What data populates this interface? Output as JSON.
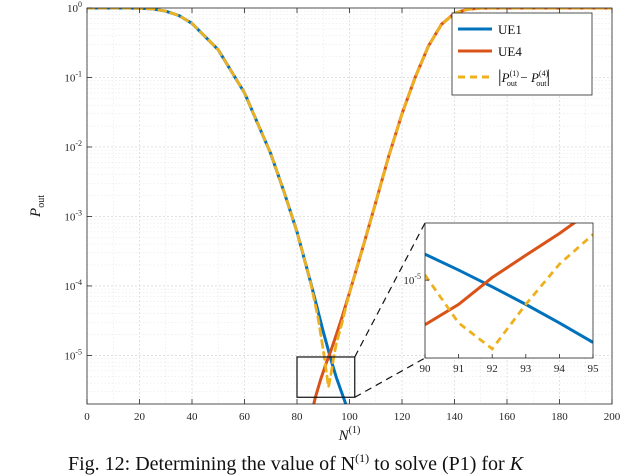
{
  "caption": "Fig. 12: Determining the value of N",
  "caption_tail": "to solve (P1) for",
  "caption_k": "K",
  "chart_data": [
    {
      "type": "line",
      "yscale": "log",
      "xlim": [
        0,
        200
      ],
      "ylim": [
        2e-06,
        1
      ],
      "xticks": [
        0,
        20,
        40,
        60,
        80,
        100,
        120,
        140,
        160,
        180,
        200
      ],
      "xlabel": {
        "main": "N",
        "sup": "(1)"
      },
      "ylabel": {
        "main": "P",
        "sub": "out"
      },
      "yticks": [
        {
          "value": 1,
          "base": "10",
          "exp": "0"
        },
        {
          "value": 0.1,
          "base": "10",
          "exp": "-1"
        },
        {
          "value": 0.01,
          "base": "10",
          "exp": "-2"
        },
        {
          "value": 0.001,
          "base": "10",
          "exp": "-3"
        },
        {
          "value": 0.0001,
          "base": "10",
          "exp": "-4"
        },
        {
          "value": 1e-05,
          "base": "10",
          "exp": "-5"
        }
      ],
      "grid": true,
      "legend": "top-right",
      "series": [
        {
          "name": "UE1",
          "color": "#0072BD",
          "style": "solid",
          "x": [
            0,
            15,
            20,
            25,
            30,
            35,
            40,
            50,
            60,
            70,
            75,
            80,
            85,
            90,
            93,
            95,
            98,
            100
          ],
          "y": [
            1,
            1,
            0.99,
            0.97,
            0.9,
            0.78,
            0.6,
            0.25,
            0.06,
            0.008,
            0.0023,
            0.0006,
            0.00012,
            2.2e-05,
            8.5e-06,
            4.8e-06,
            2.3e-06,
            1.4e-06
          ]
        },
        {
          "name": "UE4",
          "color": "#D95319",
          "style": "solid",
          "x": [
            85,
            87,
            89,
            91,
            93,
            95,
            97,
            100,
            105,
            110,
            115,
            120,
            125,
            130,
            135,
            140,
            145,
            150,
            160,
            200
          ],
          "y": [
            1.2e-06,
            2.5e-06,
            4.5e-06,
            7.5e-06,
            1.2e-05,
            2e-05,
            3.4e-05,
            8e-05,
            0.00035,
            0.0016,
            0.0075,
            0.03,
            0.1,
            0.28,
            0.58,
            0.84,
            0.96,
            0.995,
            1,
            1
          ]
        },
        {
          "name": "|P_out^(1) − P_out^(4)|",
          "color": "#EDB120",
          "style": "dashed",
          "x": [
            0,
            15,
            20,
            25,
            30,
            35,
            40,
            50,
            60,
            70,
            75,
            80,
            85,
            88,
            90,
            91,
            92,
            93,
            94,
            95,
            97,
            100,
            105,
            110,
            115,
            120,
            125,
            130,
            135,
            140,
            145,
            150,
            160,
            200
          ],
          "y": [
            1,
            1,
            0.99,
            0.97,
            0.9,
            0.78,
            0.6,
            0.25,
            0.06,
            0.008,
            0.0023,
            0.0006,
            0.00012,
            3.5e-05,
            1.2e-05,
            6.5e-06,
            3.5e-06,
            5.5e-06,
            9.5e-06,
            1.5e-05,
            2.8e-05,
            8e-05,
            0.00035,
            0.0016,
            0.0075,
            0.03,
            0.1,
            0.28,
            0.58,
            0.84,
            0.96,
            0.995,
            1,
            1
          ]
        }
      ],
      "zoom_box": {
        "x": [
          80,
          102
        ],
        "y": [
          2.5e-06,
          9.5e-06
        ]
      }
    },
    {
      "type": "line",
      "yscale": "log",
      "xlim": [
        90,
        95
      ],
      "ylim": [
        5.5e-06,
        1.55e-05
      ],
      "xticks": [
        90,
        91,
        92,
        93,
        94,
        95
      ],
      "yticks": [
        {
          "value": 1e-05,
          "base": "10",
          "exp": "-5"
        }
      ],
      "grid": false,
      "series": [
        {
          "name": "UE1",
          "color": "#0072BD",
          "style": "solid",
          "x": [
            90,
            91,
            92,
            93,
            94,
            95
          ],
          "y": [
            1.22e-05,
            1.08e-05,
            9.5e-06,
            8.3e-06,
            7.2e-06,
            6.2e-06
          ]
        },
        {
          "name": "UE4",
          "color": "#D95319",
          "style": "solid",
          "x": [
            90,
            91,
            92,
            93,
            94,
            95
          ],
          "y": [
            7.1e-06,
            8.3e-06,
            1.02e-05,
            1.21e-05,
            1.43e-05,
            1.72e-05
          ]
        },
        {
          "name": "|P_out^(1) − P_out^(4)|",
          "color": "#EDB120",
          "style": "dashed",
          "x": [
            90,
            91,
            92,
            93,
            94,
            95
          ],
          "y": [
            1.04e-05,
            7.2e-06,
            5.9e-06,
            8.3e-06,
            1.13e-05,
            1.42e-05
          ]
        }
      ]
    }
  ]
}
